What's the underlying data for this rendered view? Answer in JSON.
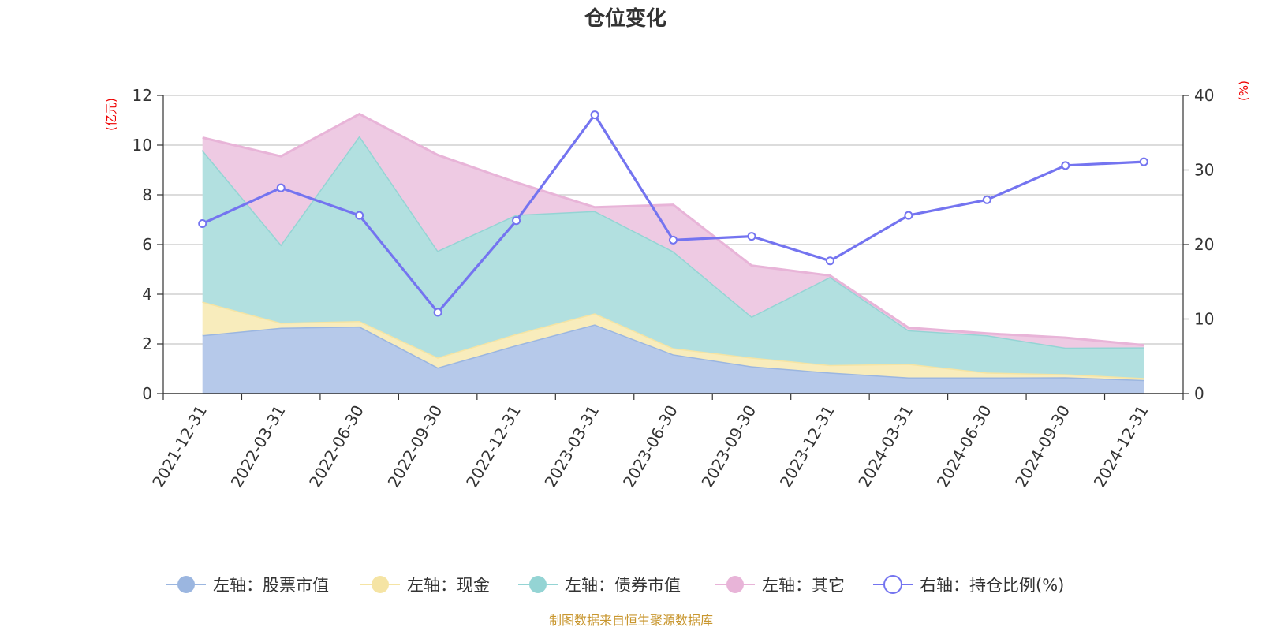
{
  "chart_data": {
    "type": "area",
    "title": "仓位变化",
    "categories": [
      "2021-12-31",
      "2022-03-31",
      "2022-06-30",
      "2022-09-30",
      "2022-12-31",
      "2023-03-31",
      "2023-06-30",
      "2023-09-30",
      "2023-12-31",
      "2024-03-31",
      "2024-06-30",
      "2024-09-30",
      "2024-12-31"
    ],
    "left_axis": {
      "unit": "(亿元)",
      "ylim": [
        0,
        12
      ],
      "ticks": [
        0,
        2,
        4,
        6,
        8,
        10,
        12
      ]
    },
    "right_axis": {
      "unit": "(%)",
      "ylim": [
        0,
        40
      ],
      "ticks": [
        0,
        10,
        20,
        30,
        40
      ]
    },
    "stacked_series": [
      {
        "name": "左轴：股票市值",
        "color": "#9bb6e0",
        "fill": "#b6c9ea",
        "values": [
          2.35,
          2.65,
          2.7,
          1.05,
          1.95,
          2.78,
          1.58,
          1.1,
          0.85,
          0.65,
          0.65,
          0.66,
          0.55
        ]
      },
      {
        "name": "左轴：现金",
        "color": "#f5e4a4",
        "fill": "#f8ecbc",
        "values": [
          1.35,
          0.2,
          0.22,
          0.4,
          0.45,
          0.45,
          0.25,
          0.35,
          0.3,
          0.55,
          0.2,
          0.12,
          0.08
        ]
      },
      {
        "name": "左轴：债券市值",
        "color": "#94d4d4",
        "fill": "#b2e0e0",
        "values": [
          6.1,
          3.15,
          7.45,
          4.3,
          4.8,
          4.12,
          3.9,
          1.65,
          3.55,
          1.35,
          1.5,
          1.07,
          1.23
        ]
      },
      {
        "name": "左轴：其它",
        "color": "#e8b4d8",
        "fill": "#eecae3",
        "values": [
          0.5,
          3.55,
          0.88,
          3.85,
          1.3,
          0.15,
          1.87,
          2.05,
          0.05,
          0.1,
          0.07,
          0.4,
          0.09
        ]
      }
    ],
    "line_series": {
      "name": "右轴：持仓比例(%)",
      "color": "#7474f0",
      "axis": "right",
      "values": [
        22.8,
        27.6,
        23.9,
        10.9,
        23.2,
        37.4,
        20.6,
        21.1,
        17.8,
        23.9,
        26.0,
        30.6,
        31.1
      ]
    },
    "source_note": "制图数据来自恒生聚源数据库"
  }
}
